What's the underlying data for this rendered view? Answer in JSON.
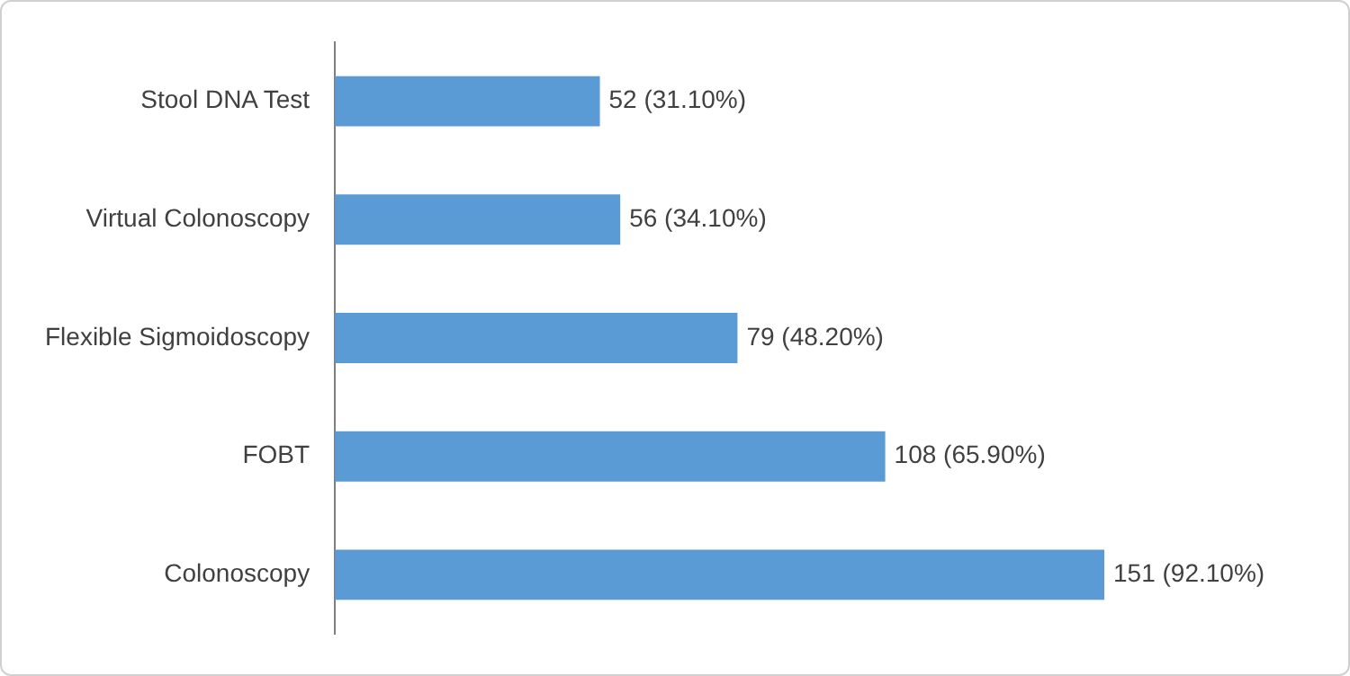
{
  "chart_data": {
    "type": "bar",
    "orientation": "horizontal",
    "categories": [
      "Stool DNA Test",
      "Virtual Colonoscopy",
      "Flexible Sigmoidoscopy",
      "FOBT",
      "Colonoscopy"
    ],
    "values": [
      52,
      56,
      79,
      108,
      151
    ],
    "value_labels": [
      "52 (31.10%)",
      "56 (34.10%)",
      "79 (48.20%)",
      "108 (65.90%)",
      "151 (92.10%)"
    ],
    "color": "#5b9bd5"
  }
}
